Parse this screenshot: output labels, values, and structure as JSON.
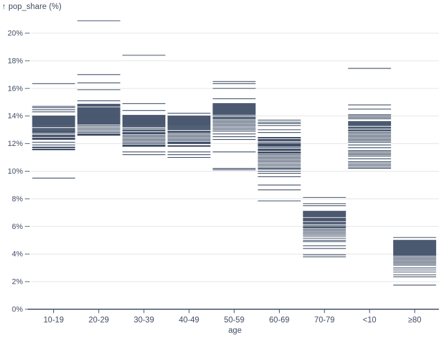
{
  "chart_data": {
    "type": "tick-strip",
    "title": "↑ pop_share (%)",
    "xlabel": "age",
    "ylabel": "pop_share (%)",
    "ylim": [
      0,
      21
    ],
    "grid": true,
    "legend": "none",
    "y_tick_values": [
      0,
      2,
      4,
      6,
      8,
      10,
      12,
      14,
      16,
      18,
      20
    ],
    "y_tick_labels": [
      "0%",
      "2%",
      "4%",
      "6%",
      "8%",
      "10%",
      "12%",
      "14%",
      "16%",
      "18%",
      "20%"
    ],
    "categories": [
      "10-19",
      "20-29",
      "30-39",
      "40-49",
      "50-59",
      "60-69",
      "70-79",
      "<10",
      "≥80"
    ],
    "series": [
      {
        "category": "10-19",
        "values": [
          16.35,
          14.7,
          14.6,
          14.45,
          14.3,
          14.0,
          13.95,
          13.9,
          13.85,
          13.8,
          13.75,
          13.7,
          13.65,
          13.6,
          13.55,
          13.5,
          13.45,
          13.4,
          13.35,
          13.3,
          13.25,
          13.2,
          13.1,
          13.05,
          13.0,
          12.95,
          12.9,
          12.85,
          12.8,
          12.7,
          12.6,
          12.55,
          12.5,
          12.4,
          12.35,
          12.3,
          12.1,
          11.9,
          11.75,
          11.7,
          11.6,
          11.55,
          9.5
        ]
      },
      {
        "category": "20-29",
        "values": [
          20.9,
          17.0,
          16.4,
          15.9,
          15.1,
          14.85,
          14.8,
          14.75,
          14.7,
          14.6,
          14.55,
          14.5,
          14.45,
          14.4,
          14.35,
          14.3,
          14.25,
          14.2,
          14.15,
          14.1,
          14.05,
          14.0,
          13.95,
          13.9,
          13.85,
          13.8,
          13.75,
          13.7,
          13.65,
          13.6,
          13.55,
          13.5,
          13.45,
          13.4,
          13.3,
          13.2,
          13.1,
          13.0,
          12.9,
          12.8,
          12.7,
          12.65,
          12.6
        ]
      },
      {
        "category": "30-39",
        "values": [
          18.4,
          14.9,
          14.4,
          14.05,
          14.0,
          13.95,
          13.9,
          13.85,
          13.8,
          13.75,
          13.7,
          13.65,
          13.6,
          13.55,
          13.5,
          13.45,
          13.4,
          13.35,
          13.3,
          13.25,
          13.2,
          13.1,
          13.0,
          12.95,
          12.9,
          12.8,
          12.75,
          12.7,
          12.6,
          12.5,
          12.4,
          12.3,
          12.2,
          12.1,
          12.0,
          11.9,
          11.85,
          11.8,
          11.4,
          11.2
        ]
      },
      {
        "category": "40-49",
        "values": [
          14.2,
          14.0,
          13.95,
          13.9,
          13.85,
          13.8,
          13.75,
          13.7,
          13.65,
          13.6,
          13.55,
          13.5,
          13.45,
          13.4,
          13.35,
          13.3,
          13.25,
          13.2,
          13.15,
          13.1,
          13.05,
          13.0,
          12.9,
          12.85,
          12.8,
          12.7,
          12.6,
          12.5,
          12.4,
          12.3,
          12.2,
          12.1,
          12.05,
          12.0,
          11.85,
          11.8,
          11.4,
          11.2,
          11.0
        ]
      },
      {
        "category": "50-59",
        "values": [
          16.5,
          16.35,
          16.0,
          15.25,
          14.9,
          14.85,
          14.8,
          14.75,
          14.7,
          14.65,
          14.6,
          14.55,
          14.5,
          14.45,
          14.4,
          14.35,
          14.3,
          14.25,
          14.2,
          14.15,
          14.1,
          14.0,
          13.9,
          13.85,
          13.8,
          13.7,
          13.6,
          13.5,
          13.4,
          13.3,
          13.2,
          13.1,
          13.0,
          12.9,
          12.7,
          12.5,
          12.3,
          11.4,
          10.2,
          10.1
        ]
      },
      {
        "category": "60-69",
        "values": [
          13.7,
          13.55,
          13.45,
          13.3,
          13.0,
          12.8,
          12.45,
          12.4,
          12.3,
          12.25,
          12.2,
          12.1,
          12.0,
          11.95,
          11.9,
          11.85,
          11.8,
          11.7,
          11.6,
          11.55,
          11.5,
          11.4,
          11.35,
          11.3,
          11.2,
          11.1,
          11.0,
          10.9,
          10.8,
          10.7,
          10.6,
          10.5,
          10.4,
          10.3,
          10.2,
          10.15,
          10.0,
          9.85,
          9.6,
          9.0,
          8.65,
          7.85
        ]
      },
      {
        "category": "70-79",
        "values": [
          8.1,
          7.65,
          7.5,
          7.1,
          7.05,
          7.0,
          6.95,
          6.9,
          6.85,
          6.8,
          6.75,
          6.7,
          6.6,
          6.55,
          6.5,
          6.45,
          6.4,
          6.3,
          6.25,
          6.2,
          6.1,
          6.0,
          5.95,
          5.9,
          5.8,
          5.7,
          5.6,
          5.5,
          5.4,
          5.3,
          5.15,
          5.0,
          4.9,
          4.6,
          4.4,
          3.95,
          3.8
        ]
      },
      {
        "category": "<10",
        "values": [
          17.45,
          14.8,
          14.5,
          14.1,
          14.0,
          13.9,
          13.8,
          13.6,
          13.55,
          13.5,
          13.45,
          13.4,
          13.35,
          13.3,
          13.2,
          13.15,
          13.1,
          13.0,
          12.95,
          12.9,
          12.8,
          12.7,
          12.6,
          12.5,
          12.4,
          12.3,
          12.2,
          12.1,
          11.9,
          11.7,
          11.5,
          11.4,
          11.3,
          11.2,
          11.1,
          10.9,
          10.7,
          10.6,
          10.5,
          10.4,
          10.3,
          10.2
        ]
      },
      {
        "category": "≥80",
        "values": [
          5.2,
          5.0,
          4.95,
          4.9,
          4.85,
          4.8,
          4.75,
          4.7,
          4.65,
          4.6,
          4.55,
          4.5,
          4.45,
          4.4,
          4.35,
          4.3,
          4.25,
          4.2,
          4.15,
          4.1,
          4.05,
          4.0,
          3.95,
          3.9,
          3.8,
          3.7,
          3.6,
          3.5,
          3.4,
          3.3,
          3.2,
          3.0,
          2.85,
          2.7,
          2.5,
          2.35,
          1.75
        ]
      }
    ]
  },
  "colors": {
    "tick": "#2f3e59",
    "grid": "#e4e5e8",
    "axis": "#3f4b63",
    "text": "#3f4b63",
    "y_tick_dash": "#5a6578",
    "background": "#ffffff"
  }
}
